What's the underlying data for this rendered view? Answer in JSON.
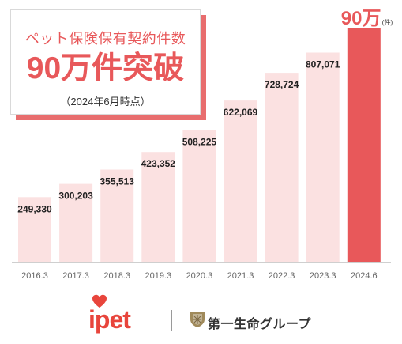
{
  "callout": {
    "line1": "ペット保険保有契約件数",
    "line2": "90万件突破",
    "note": "（2024年6月時点）"
  },
  "chart_data": {
    "type": "bar",
    "categories": [
      "2016.3",
      "2017.3",
      "2018.3",
      "2019.3",
      "2020.3",
      "2021.3",
      "2022.3",
      "2023.3",
      "2024.6"
    ],
    "values": [
      249330,
      300203,
      355513,
      423352,
      508225,
      622069,
      728724,
      807071,
      900000
    ],
    "data_labels": [
      "249,330",
      "300,203",
      "355,513",
      "423,352",
      "508,225",
      "622,069",
      "728,724",
      "807,071",
      ""
    ],
    "highlight_label": {
      "value": "90万",
      "unit": "(件)"
    },
    "title": "",
    "xlabel": "",
    "ylabel": "",
    "ylim": [
      0,
      900000
    ],
    "grid": false,
    "colors": {
      "bar": "#fbe1e1",
      "highlight_bar": "#e8585a",
      "label": "#222222",
      "highlight_label": "#e8585a",
      "tick": "#666666",
      "baseline": "#cfcfcf"
    }
  },
  "logos": {
    "ipet": "ipet",
    "company": "第一生命グループ"
  }
}
